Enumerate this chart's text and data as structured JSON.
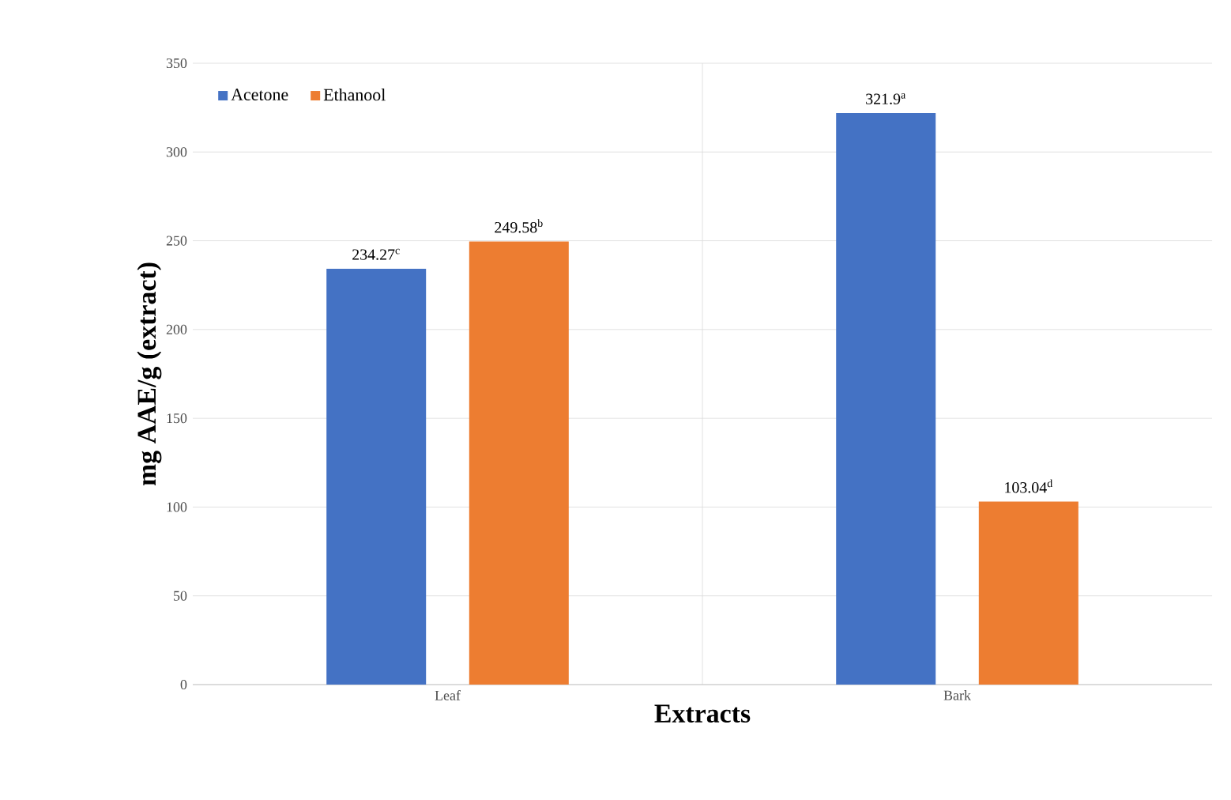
{
  "chart_data": {
    "type": "bar",
    "xlabel": "Extracts",
    "ylabel": "mg AAE/g (extract)",
    "categories": [
      "Leaf",
      "Bark"
    ],
    "series": [
      {
        "name": "Acetone",
        "color": "#4472c4",
        "values": [
          234.27,
          321.9
        ],
        "value_labels": [
          "234.27$^{c}$",
          "321.9$^{a}$"
        ]
      },
      {
        "name": "Ethanool",
        "color": "#ed7d31",
        "values": [
          249.58,
          103.04
        ],
        "value_labels": [
          "249.58$^{b}$",
          "103.04$^{d}$"
        ]
      }
    ],
    "ylim": [
      0,
      350
    ],
    "yticks": [
      0,
      50,
      100,
      150,
      200,
      250,
      300,
      350
    ],
    "grid": true,
    "legend": "top left"
  }
}
